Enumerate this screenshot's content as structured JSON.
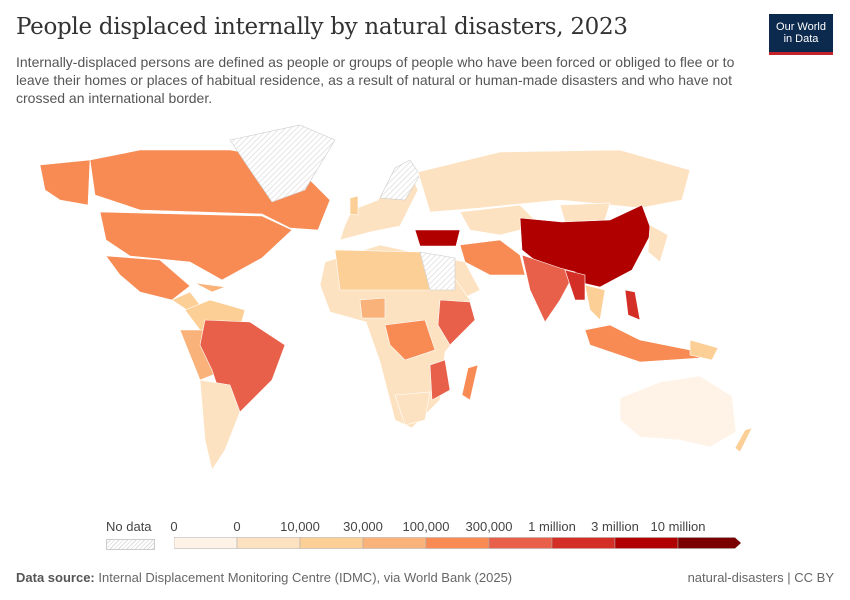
{
  "title": "People displaced internally by natural disasters, 2023",
  "subtitle": "Internally-displaced persons are defined as people or groups of people who have been forced or obliged to flee or to leave their homes or places of habitual residence, as a result of natural or human-made disasters and who have not crossed an international border.",
  "logo": {
    "line1": "Our World",
    "line2": "in Data"
  },
  "legend": {
    "no_data_label": "No data",
    "labels": [
      "0",
      "0",
      "10,000",
      "30,000",
      "100,000",
      "300,000",
      "1 million",
      "3 million",
      "10 million"
    ],
    "colors": [
      "#fef3e6",
      "#fde2c2",
      "#fccf96",
      "#f9b27a",
      "#f88b54",
      "#e8604a",
      "#d42f26",
      "#b00000",
      "#7a0000"
    ]
  },
  "footer": {
    "source_label": "Data source:",
    "source_text": "Internal Displacement Monitoring Centre (IDMC), via World Bank (2025)",
    "right": "natural-disasters | CC BY"
  }
}
